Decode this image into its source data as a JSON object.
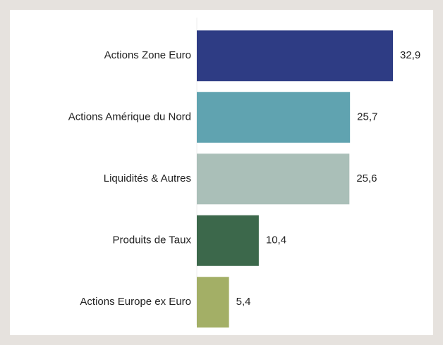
{
  "chart_data": {
    "type": "barh",
    "categories": [
      "Actions Zone Euro",
      "Actions Amérique du Nord",
      "Liquidités & Autres",
      "Produits de Taux",
      "Actions Europe ex Euro"
    ],
    "values": [
      32.9,
      25.7,
      25.6,
      10.4,
      5.4
    ],
    "value_labels": [
      "32,9",
      "25,7",
      "25,6",
      "10,4",
      "5,4"
    ],
    "colors": [
      "#2e3c84",
      "#60a3b0",
      "#aabfb8",
      "#3c684b",
      "#a3af66"
    ]
  }
}
